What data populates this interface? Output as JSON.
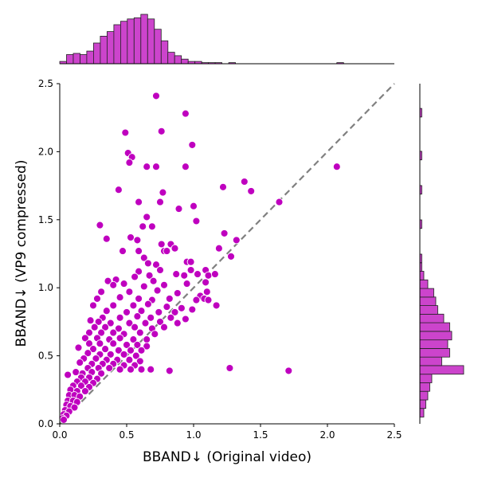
{
  "chart_data": {
    "type": "scatter",
    "xlabel": "BBAND↓  (Original video)",
    "ylabel": "BBAND↓  (VP9 compressed)",
    "xlim": [
      0,
      2.5
    ],
    "ylim": [
      0,
      2.5
    ],
    "xticks": [
      "0.0",
      "0.5",
      "1.0",
      "1.5",
      "2.0",
      "2.5"
    ],
    "yticks": [
      "0.0",
      "0.5",
      "1.0",
      "1.5",
      "2.0",
      "2.5"
    ],
    "reference_line": {
      "x": [
        0,
        2.5
      ],
      "y": [
        0,
        2.5
      ],
      "style": "dashed",
      "color": "#808080"
    },
    "point_color": "#bf00bf",
    "hist_color": "#cc44cc",
    "series": [
      {
        "type": "scatter",
        "points": [
          [
            0.72,
            2.41
          ],
          [
            0.94,
            2.28
          ],
          [
            0.49,
            2.14
          ],
          [
            0.76,
            2.15
          ],
          [
            0.99,
            2.05
          ],
          [
            0.51,
            1.99
          ],
          [
            0.54,
            1.96
          ],
          [
            0.52,
            1.92
          ],
          [
            0.65,
            1.89
          ],
          [
            0.72,
            1.89
          ],
          [
            0.94,
            1.89
          ],
          [
            2.07,
            1.89
          ],
          [
            1.38,
            1.78
          ],
          [
            1.22,
            1.74
          ],
          [
            1.43,
            1.71
          ],
          [
            0.44,
            1.72
          ],
          [
            0.77,
            1.7
          ],
          [
            0.59,
            1.63
          ],
          [
            0.75,
            1.63
          ],
          [
            1.0,
            1.6
          ],
          [
            1.64,
            1.63
          ],
          [
            0.89,
            1.58
          ],
          [
            0.65,
            1.52
          ],
          [
            0.3,
            1.46
          ],
          [
            0.62,
            1.45
          ],
          [
            0.69,
            1.45
          ],
          [
            1.02,
            1.49
          ],
          [
            1.23,
            1.4
          ],
          [
            0.35,
            1.36
          ],
          [
            0.53,
            1.37
          ],
          [
            0.58,
            1.35
          ],
          [
            1.32,
            1.35
          ],
          [
            0.76,
            1.32
          ],
          [
            0.83,
            1.32
          ],
          [
            0.47,
            1.27
          ],
          [
            0.59,
            1.27
          ],
          [
            0.78,
            1.27
          ],
          [
            0.8,
            1.27
          ],
          [
            0.86,
            1.29
          ],
          [
            1.19,
            1.29
          ],
          [
            1.28,
            1.23
          ],
          [
            0.63,
            1.22
          ],
          [
            0.66,
            1.18
          ],
          [
            0.72,
            1.17
          ],
          [
            0.95,
            1.19
          ],
          [
            0.98,
            1.19
          ],
          [
            0.59,
            1.12
          ],
          [
            0.75,
            1.13
          ],
          [
            0.98,
            1.13
          ],
          [
            1.09,
            1.13
          ],
          [
            0.36,
            1.05
          ],
          [
            0.42,
            1.06
          ],
          [
            0.56,
            1.08
          ],
          [
            0.67,
            1.09
          ],
          [
            0.7,
            1.05
          ],
          [
            0.87,
            1.1
          ],
          [
            0.93,
            1.09
          ],
          [
            1.03,
            1.1
          ],
          [
            1.11,
            1.09
          ],
          [
            1.16,
            1.1
          ],
          [
            0.4,
            1.02
          ],
          [
            0.48,
            1.03
          ],
          [
            0.63,
            1.01
          ],
          [
            0.78,
            1.02
          ],
          [
            0.95,
            1.03
          ],
          [
            1.09,
            1.04
          ],
          [
            0.31,
            0.97
          ],
          [
            0.52,
            0.97
          ],
          [
            0.73,
            0.98
          ],
          [
            0.88,
            0.96
          ],
          [
            1.05,
            0.94
          ],
          [
            1.08,
            0.92
          ],
          [
            1.1,
            0.97
          ],
          [
            0.28,
            0.92
          ],
          [
            0.45,
            0.93
          ],
          [
            0.59,
            0.92
          ],
          [
            0.69,
            0.91
          ],
          [
            0.82,
            0.92
          ],
          [
            1.02,
            0.91
          ],
          [
            1.11,
            0.91
          ],
          [
            0.25,
            0.87
          ],
          [
            0.4,
            0.87
          ],
          [
            0.55,
            0.87
          ],
          [
            0.66,
            0.88
          ],
          [
            0.8,
            0.86
          ],
          [
            0.91,
            0.85
          ],
          [
            1.17,
            0.87
          ],
          [
            0.35,
            0.83
          ],
          [
            0.5,
            0.82
          ],
          [
            0.61,
            0.83
          ],
          [
            0.74,
            0.82
          ],
          [
            0.86,
            0.82
          ],
          [
            0.99,
            0.84
          ],
          [
            0.32,
            0.78
          ],
          [
            0.45,
            0.78
          ],
          [
            0.58,
            0.79
          ],
          [
            0.68,
            0.78
          ],
          [
            0.83,
            0.78
          ],
          [
            0.94,
            0.77
          ],
          [
            0.23,
            0.76
          ],
          [
            0.29,
            0.75
          ],
          [
            0.38,
            0.74
          ],
          [
            0.52,
            0.74
          ],
          [
            0.64,
            0.74
          ],
          [
            0.75,
            0.75
          ],
          [
            0.88,
            0.74
          ],
          [
            0.26,
            0.71
          ],
          [
            0.34,
            0.71
          ],
          [
            0.44,
            0.7
          ],
          [
            0.56,
            0.71
          ],
          [
            0.69,
            0.7
          ],
          [
            0.78,
            0.71
          ],
          [
            0.22,
            0.67
          ],
          [
            0.31,
            0.67
          ],
          [
            0.4,
            0.67
          ],
          [
            0.48,
            0.66
          ],
          [
            0.6,
            0.67
          ],
          [
            0.71,
            0.66
          ],
          [
            0.19,
            0.63
          ],
          [
            0.28,
            0.63
          ],
          [
            0.37,
            0.62
          ],
          [
            0.45,
            0.63
          ],
          [
            0.55,
            0.62
          ],
          [
            0.65,
            0.62
          ],
          [
            0.22,
            0.59
          ],
          [
            0.3,
            0.59
          ],
          [
            0.4,
            0.59
          ],
          [
            0.5,
            0.58
          ],
          [
            0.58,
            0.58
          ],
          [
            0.65,
            0.57
          ],
          [
            0.14,
            0.56
          ],
          [
            0.25,
            0.55
          ],
          [
            0.34,
            0.55
          ],
          [
            0.44,
            0.54
          ],
          [
            0.53,
            0.54
          ],
          [
            0.61,
            0.54
          ],
          [
            0.21,
            0.52
          ],
          [
            0.3,
            0.51
          ],
          [
            0.38,
            0.51
          ],
          [
            0.48,
            0.51
          ],
          [
            0.57,
            0.5
          ],
          [
            0.18,
            0.48
          ],
          [
            0.27,
            0.48
          ],
          [
            0.35,
            0.47
          ],
          [
            0.43,
            0.47
          ],
          [
            0.52,
            0.47
          ],
          [
            0.6,
            0.46
          ],
          [
            0.15,
            0.45
          ],
          [
            0.24,
            0.44
          ],
          [
            0.32,
            0.44
          ],
          [
            0.4,
            0.44
          ],
          [
            0.48,
            0.43
          ],
          [
            0.56,
            0.43
          ],
          [
            0.21,
            0.41
          ],
          [
            0.29,
            0.41
          ],
          [
            0.37,
            0.41
          ],
          [
            0.45,
            0.4
          ],
          [
            0.53,
            0.4
          ],
          [
            0.61,
            0.4
          ],
          [
            0.68,
            0.4
          ],
          [
            0.82,
            0.39
          ],
          [
            1.27,
            0.41
          ],
          [
            1.71,
            0.39
          ],
          [
            0.06,
            0.36
          ],
          [
            0.12,
            0.38
          ],
          [
            0.17,
            0.37
          ],
          [
            0.24,
            0.38
          ],
          [
            0.31,
            0.37
          ],
          [
            0.16,
            0.34
          ],
          [
            0.22,
            0.34
          ],
          [
            0.28,
            0.33
          ],
          [
            0.13,
            0.31
          ],
          [
            0.19,
            0.31
          ],
          [
            0.25,
            0.3
          ],
          [
            0.1,
            0.28
          ],
          [
            0.16,
            0.28
          ],
          [
            0.22,
            0.27
          ],
          [
            0.08,
            0.25
          ],
          [
            0.13,
            0.24
          ],
          [
            0.19,
            0.24
          ],
          [
            0.07,
            0.21
          ],
          [
            0.11,
            0.21
          ],
          [
            0.15,
            0.2
          ],
          [
            0.06,
            0.17
          ],
          [
            0.1,
            0.17
          ],
          [
            0.13,
            0.16
          ],
          [
            0.05,
            0.14
          ],
          [
            0.08,
            0.13
          ],
          [
            0.11,
            0.12
          ],
          [
            0.04,
            0.1
          ],
          [
            0.07,
            0.09
          ],
          [
            0.03,
            0.07
          ],
          [
            0.05,
            0.06
          ],
          [
            0.02,
            0.04
          ],
          [
            0.03,
            0.03
          ]
        ]
      }
    ],
    "x_histogram": {
      "bin_start": 0.0,
      "bin_width": 0.0505,
      "counts": [
        2,
        8,
        9,
        8,
        11,
        18,
        24,
        28,
        34,
        37,
        39,
        40,
        43,
        39,
        30,
        20,
        10,
        7,
        4,
        2,
        2,
        1,
        1,
        1,
        0,
        1,
        0,
        0,
        0,
        0,
        0,
        0,
        0,
        0,
        0,
        0,
        0,
        0,
        0,
        0,
        0,
        1
      ]
    },
    "y_histogram": {
      "bin_start": 0.05,
      "bin_width": 0.063,
      "counts": [
        2,
        3,
        4,
        5,
        6,
        22,
        11,
        15,
        14,
        16,
        15,
        12,
        9,
        8,
        7,
        4,
        2,
        1,
        1,
        0,
        0,
        0,
        1,
        0,
        0,
        0,
        1,
        0,
        0,
        0,
        1,
        0,
        0,
        0,
        0,
        1,
        0,
        0,
        0,
        0,
        0,
        0,
        0,
        0,
        0
      ]
    }
  }
}
